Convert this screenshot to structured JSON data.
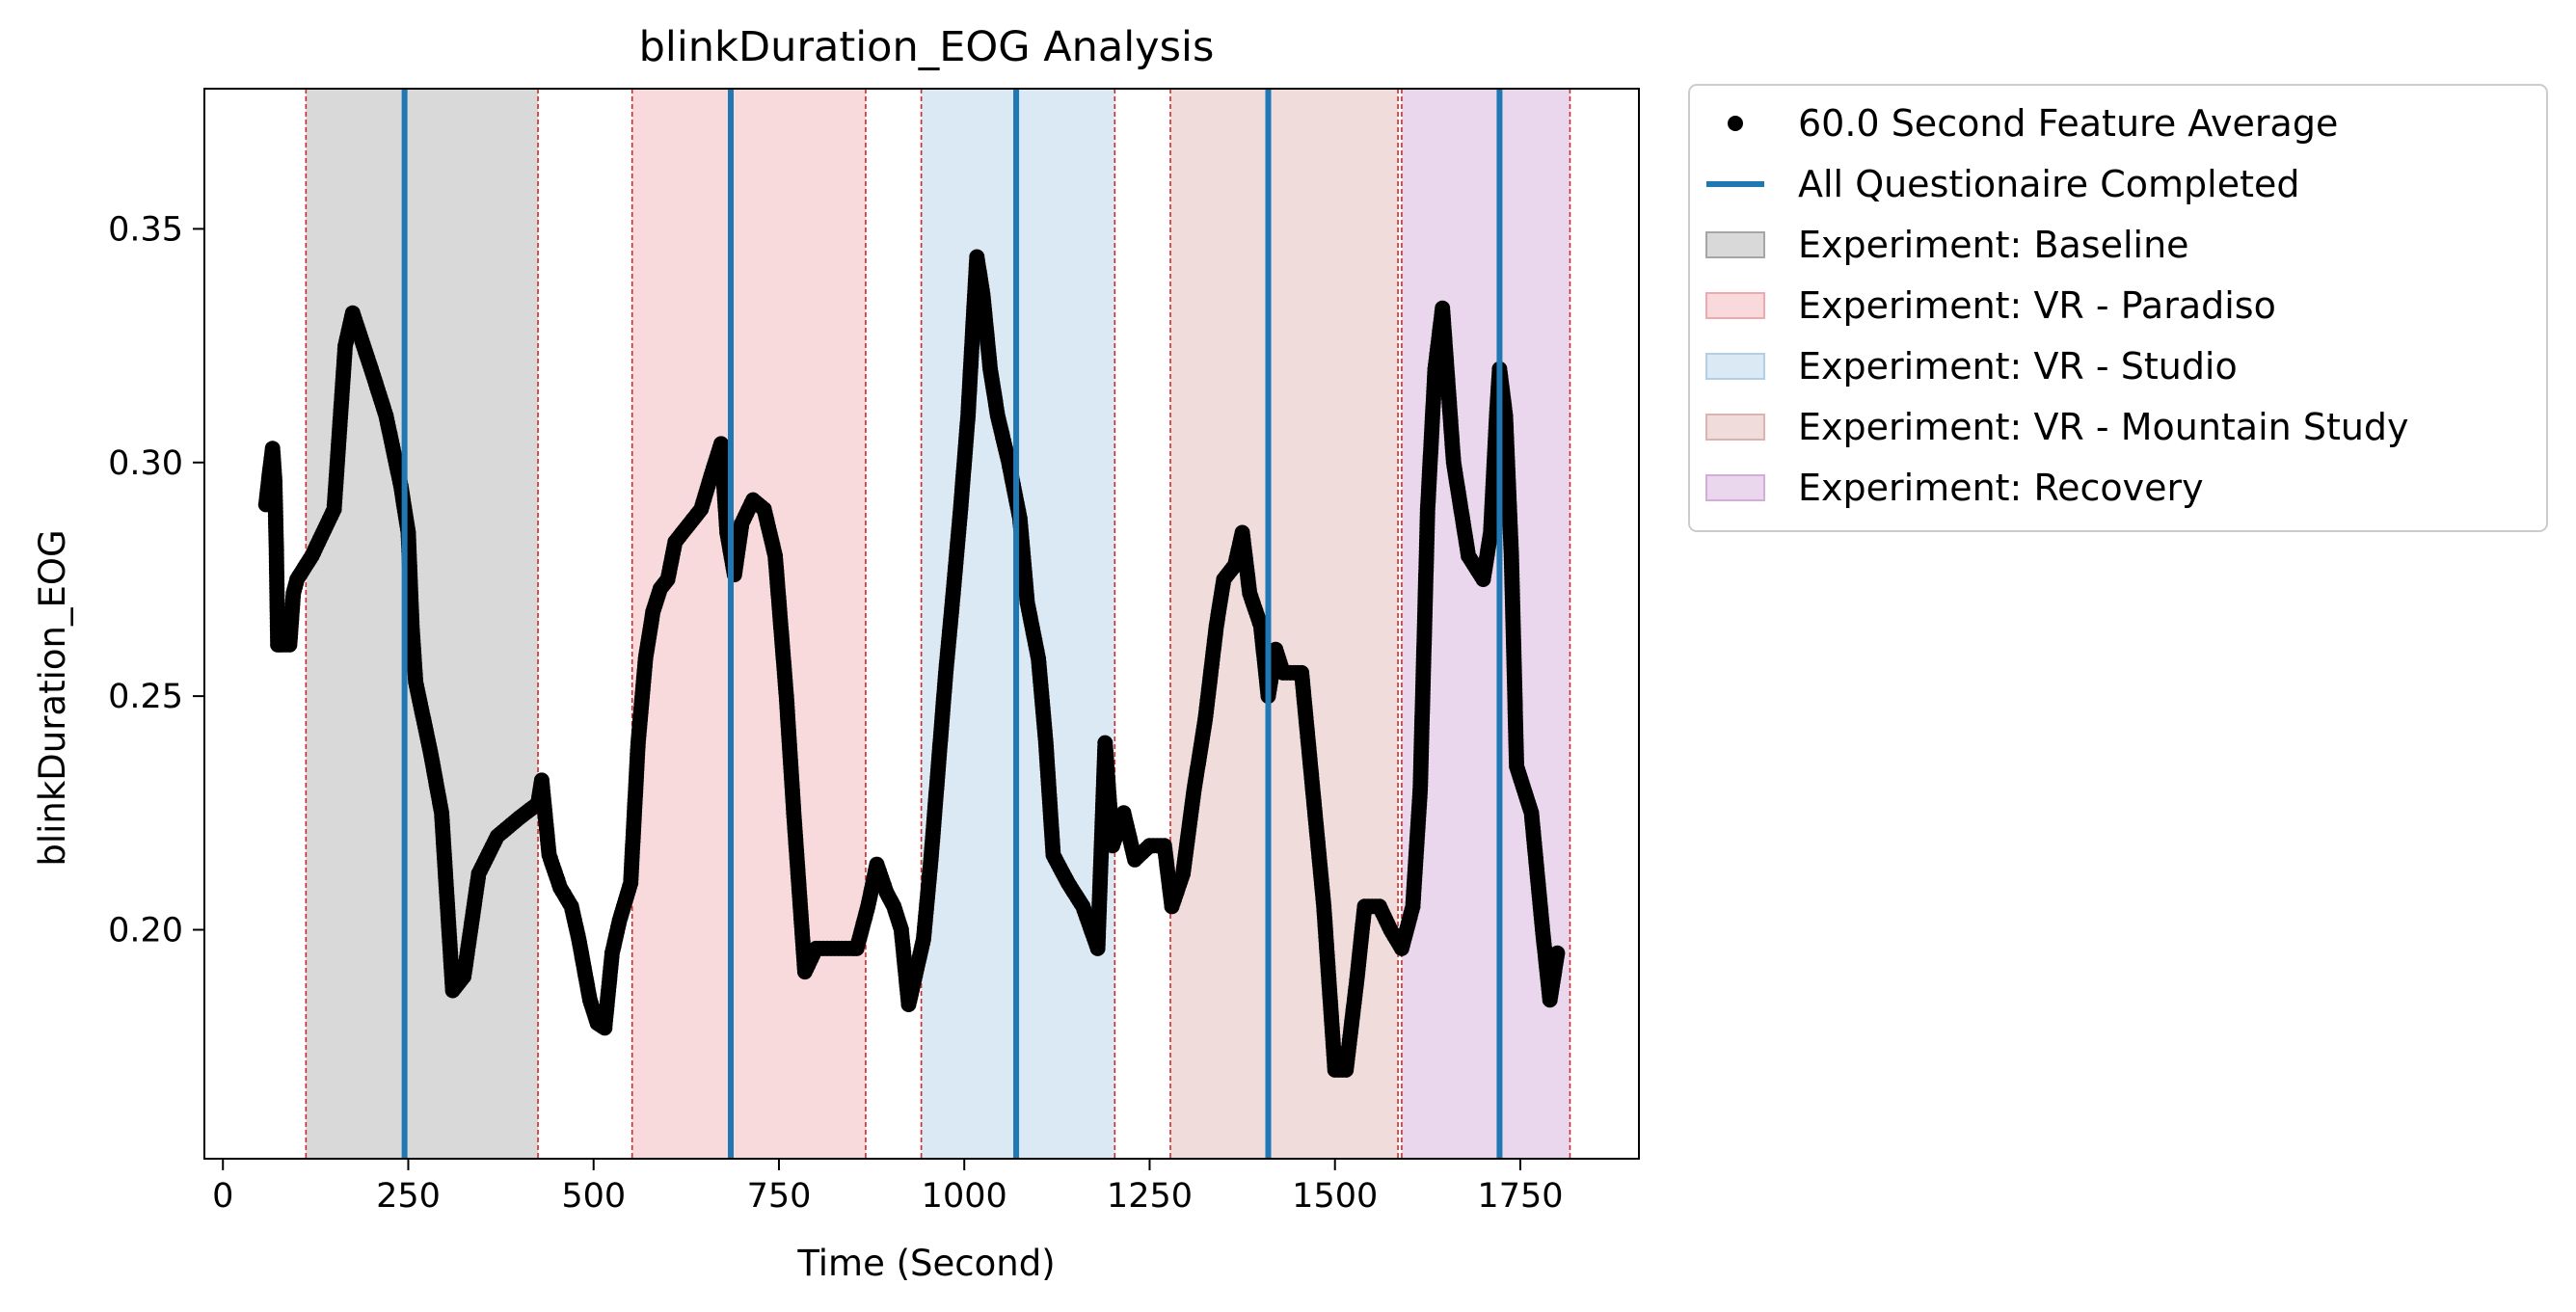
{
  "chart_data": {
    "type": "scatter",
    "title": "blinkDuration_EOG Analysis",
    "xlabel": "Time (Second)",
    "ylabel": "blinkDuration_EOG",
    "xlim": [
      -25,
      1910
    ],
    "ylim": [
      0.151,
      0.38
    ],
    "xticks": [
      0,
      250,
      500,
      750,
      1000,
      1250,
      1500,
      1750
    ],
    "yticks": [
      0.2,
      0.25,
      0.3,
      0.35
    ],
    "legend_position": "outside-right-top",
    "series": [
      {
        "name": "60.0 Second Feature Average",
        "kind": "points",
        "color": "#000000",
        "keypoints": [
          [
            58,
            0.291
          ],
          [
            63,
            0.298
          ],
          [
            67,
            0.303
          ],
          [
            70,
            0.296
          ],
          [
            72,
            0.282
          ],
          [
            74,
            0.261
          ],
          [
            80,
            0.261
          ],
          [
            90,
            0.261
          ],
          [
            95,
            0.272
          ],
          [
            100,
            0.275
          ],
          [
            120,
            0.28
          ],
          [
            150,
            0.29
          ],
          [
            165,
            0.325
          ],
          [
            175,
            0.332
          ],
          [
            200,
            0.32
          ],
          [
            220,
            0.31
          ],
          [
            240,
            0.295
          ],
          [
            250,
            0.285
          ],
          [
            255,
            0.265
          ],
          [
            260,
            0.253
          ],
          [
            280,
            0.238
          ],
          [
            295,
            0.225
          ],
          [
            310,
            0.187
          ],
          [
            325,
            0.19
          ],
          [
            345,
            0.212
          ],
          [
            370,
            0.22
          ],
          [
            400,
            0.224
          ],
          [
            425,
            0.227
          ],
          [
            430,
            0.232
          ],
          [
            440,
            0.216
          ],
          [
            455,
            0.209
          ],
          [
            470,
            0.205
          ],
          [
            480,
            0.198
          ],
          [
            495,
            0.185
          ],
          [
            505,
            0.18
          ],
          [
            515,
            0.179
          ],
          [
            525,
            0.195
          ],
          [
            535,
            0.202
          ],
          [
            550,
            0.21
          ],
          [
            560,
            0.24
          ],
          [
            570,
            0.258
          ],
          [
            580,
            0.268
          ],
          [
            590,
            0.273
          ],
          [
            600,
            0.275
          ],
          [
            610,
            0.283
          ],
          [
            625,
            0.286
          ],
          [
            645,
            0.29
          ],
          [
            660,
            0.298
          ],
          [
            672,
            0.304
          ],
          [
            680,
            0.285
          ],
          [
            690,
            0.276
          ],
          [
            700,
            0.287
          ],
          [
            715,
            0.292
          ],
          [
            730,
            0.29
          ],
          [
            745,
            0.28
          ],
          [
            760,
            0.25
          ],
          [
            770,
            0.225
          ],
          [
            785,
            0.191
          ],
          [
            800,
            0.196
          ],
          [
            830,
            0.196
          ],
          [
            855,
            0.196
          ],
          [
            870,
            0.205
          ],
          [
            882,
            0.214
          ],
          [
            895,
            0.208
          ],
          [
            905,
            0.205
          ],
          [
            915,
            0.2
          ],
          [
            925,
            0.184
          ],
          [
            935,
            0.191
          ],
          [
            945,
            0.198
          ],
          [
            955,
            0.215
          ],
          [
            965,
            0.235
          ],
          [
            975,
            0.255
          ],
          [
            985,
            0.272
          ],
          [
            995,
            0.29
          ],
          [
            1005,
            0.31
          ],
          [
            1012,
            0.33
          ],
          [
            1017,
            0.344
          ],
          [
            1025,
            0.336
          ],
          [
            1035,
            0.32
          ],
          [
            1045,
            0.31
          ],
          [
            1060,
            0.3
          ],
          [
            1075,
            0.288
          ],
          [
            1085,
            0.27
          ],
          [
            1100,
            0.258
          ],
          [
            1110,
            0.24
          ],
          [
            1120,
            0.216
          ],
          [
            1140,
            0.21
          ],
          [
            1160,
            0.205
          ],
          [
            1180,
            0.196
          ],
          [
            1190,
            0.24
          ],
          [
            1200,
            0.218
          ],
          [
            1215,
            0.225
          ],
          [
            1230,
            0.215
          ],
          [
            1250,
            0.218
          ],
          [
            1270,
            0.218
          ],
          [
            1280,
            0.205
          ],
          [
            1295,
            0.212
          ],
          [
            1310,
            0.23
          ],
          [
            1325,
            0.245
          ],
          [
            1340,
            0.265
          ],
          [
            1350,
            0.275
          ],
          [
            1365,
            0.278
          ],
          [
            1375,
            0.285
          ],
          [
            1385,
            0.272
          ],
          [
            1400,
            0.265
          ],
          [
            1410,
            0.25
          ],
          [
            1420,
            0.26
          ],
          [
            1430,
            0.255
          ],
          [
            1440,
            0.255
          ],
          [
            1455,
            0.255
          ],
          [
            1470,
            0.23
          ],
          [
            1485,
            0.205
          ],
          [
            1500,
            0.17
          ],
          [
            1515,
            0.17
          ],
          [
            1530,
            0.19
          ],
          [
            1540,
            0.205
          ],
          [
            1560,
            0.205
          ],
          [
            1575,
            0.2
          ],
          [
            1590,
            0.196
          ],
          [
            1605,
            0.205
          ],
          [
            1615,
            0.23
          ],
          [
            1625,
            0.29
          ],
          [
            1635,
            0.32
          ],
          [
            1645,
            0.333
          ],
          [
            1660,
            0.3
          ],
          [
            1680,
            0.28
          ],
          [
            1700,
            0.275
          ],
          [
            1710,
            0.285
          ],
          [
            1718,
            0.31
          ],
          [
            1722,
            0.32
          ],
          [
            1730,
            0.31
          ],
          [
            1738,
            0.28
          ],
          [
            1745,
            0.235
          ],
          [
            1755,
            0.23
          ],
          [
            1765,
            0.225
          ],
          [
            1780,
            0.2
          ],
          [
            1790,
            0.185
          ],
          [
            1800,
            0.195
          ]
        ]
      },
      {
        "name": "All Questionaire Completed",
        "kind": "vlines",
        "color": "#1f77b4",
        "x": [
          245,
          685,
          1070,
          1410,
          1722
        ]
      }
    ],
    "regions": [
      {
        "name": "Experiment: Baseline",
        "start": 112,
        "end": 425,
        "color": "#d9d9d9",
        "border": "#a6a6a6"
      },
      {
        "name": "Experiment: VR - Paradiso",
        "start": 552,
        "end": 867,
        "color": "#f8dadd",
        "border": "#f0a8ae"
      },
      {
        "name": "Experiment: VR - Studio",
        "start": 942,
        "end": 1203,
        "color": "#dbe9f4",
        "border": "#b3cfe6"
      },
      {
        "name": "Experiment: VR - Mountain Study",
        "start": 1278,
        "end": 1585,
        "color": "#f1dcdc",
        "border": "#dfb1b1"
      },
      {
        "name": "Experiment: Recovery",
        "start": 1590,
        "end": 1817,
        "color": "#ead7ed",
        "border": "#d3acd9"
      }
    ],
    "region_boundary_color": "#d62728"
  }
}
